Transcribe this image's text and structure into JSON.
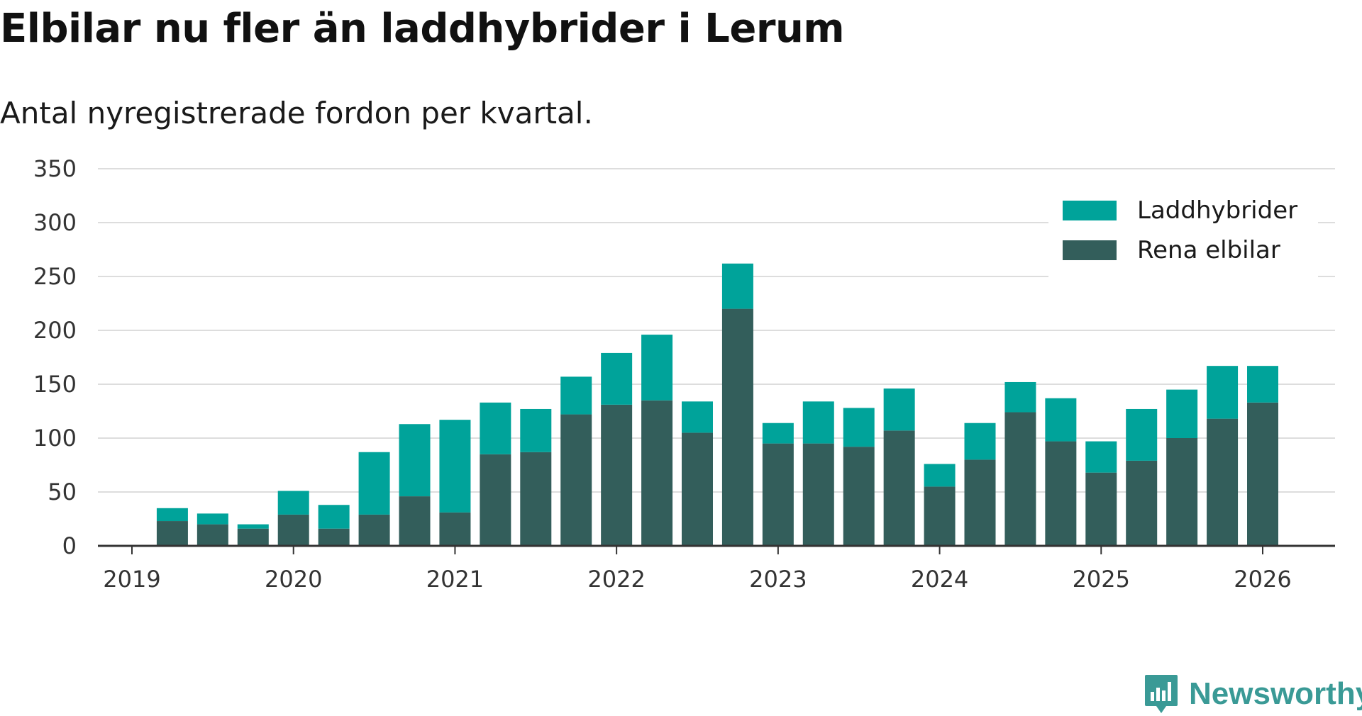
{
  "title": "Elbilar nu fler än laddhybrider i Lerum",
  "subtitle": "Antal nyregistrerade fordon per kvartal.",
  "brand": "Newsworthy",
  "colors": {
    "laddhybrider": "#00a39a",
    "rena_elbilar": "#335e5b",
    "grid": "#dddddd",
    "axis": "#333333",
    "brand": "#3a9a96"
  },
  "chart_data": {
    "type": "bar",
    "stacked": true,
    "ylim": [
      0,
      350
    ],
    "yticks": [
      0,
      50,
      100,
      150,
      200,
      250,
      300,
      350
    ],
    "xticks": [
      "2019",
      "2020",
      "2021",
      "2022",
      "2023",
      "2024",
      "2025",
      "2026"
    ],
    "grid": true,
    "legend_position": "top-right",
    "categories": [
      "2019 K2",
      "2019 K3",
      "2019 K4",
      "2020 K1",
      "2020 K2",
      "2020 K3",
      "2020 K4",
      "2021 K1",
      "2021 K2",
      "2021 K3",
      "2021 K4",
      "2022 K1",
      "2022 K2",
      "2022 K3",
      "2022 K4",
      "2023 K1",
      "2023 K2",
      "2023 K3",
      "2023 K4",
      "2024 K1",
      "2024 K2",
      "2024 K3",
      "2024 K4",
      "2025 K1",
      "2025 K2",
      "2025 K3",
      "2025 K4",
      "2026 K1"
    ],
    "series": [
      {
        "name": "Rena elbilar",
        "values": [
          23,
          20,
          16,
          29,
          16,
          29,
          46,
          31,
          85,
          87,
          122,
          131,
          135,
          105,
          220,
          95,
          95,
          92,
          107,
          55,
          80,
          124,
          97,
          68,
          79,
          100,
          118,
          133
        ]
      },
      {
        "name": "Laddhybrider",
        "values": [
          12,
          10,
          4,
          22,
          22,
          58,
          67,
          86,
          48,
          40,
          35,
          48,
          61,
          29,
          42,
          19,
          39,
          36,
          39,
          21,
          34,
          28,
          40,
          29,
          48,
          45,
          49,
          34
        ]
      }
    ]
  }
}
